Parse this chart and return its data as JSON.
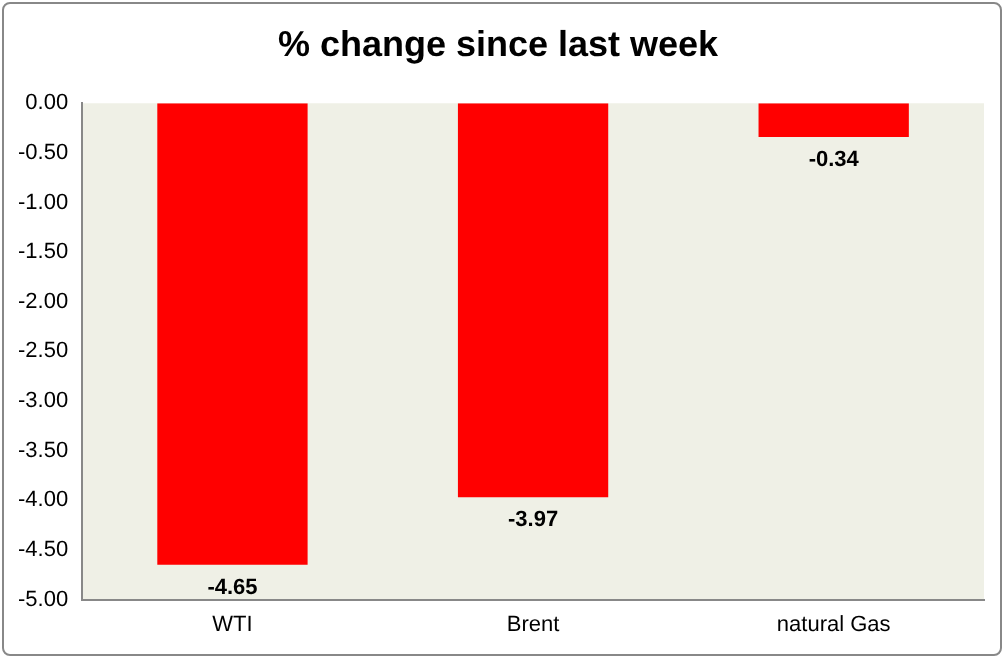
{
  "chart_data": {
    "type": "bar",
    "title": "% change since last week",
    "categories": [
      "WTI",
      "Brent",
      "natural Gas"
    ],
    "values": [
      -4.65,
      -3.97,
      -0.34
    ],
    "color": "#ff0000",
    "ylim": [
      -5,
      0
    ],
    "yticks": [
      {
        "value": 0,
        "label": "0.00"
      },
      {
        "value": -0.5,
        "label": "-0.50"
      },
      {
        "value": -1,
        "label": "-1.00"
      },
      {
        "value": -1.5,
        "label": "-1.50"
      },
      {
        "value": -2,
        "label": "-2.00"
      },
      {
        "value": -2.5,
        "label": "-2.50"
      },
      {
        "value": -3,
        "label": "-3.00"
      },
      {
        "value": -3.5,
        "label": "-3.50"
      },
      {
        "value": -4,
        "label": "-4.00"
      },
      {
        "value": -4.5,
        "label": "-4.50"
      },
      {
        "value": -5,
        "label": "-5.00"
      }
    ],
    "grid": false,
    "legend": false,
    "data_labels": true
  }
}
